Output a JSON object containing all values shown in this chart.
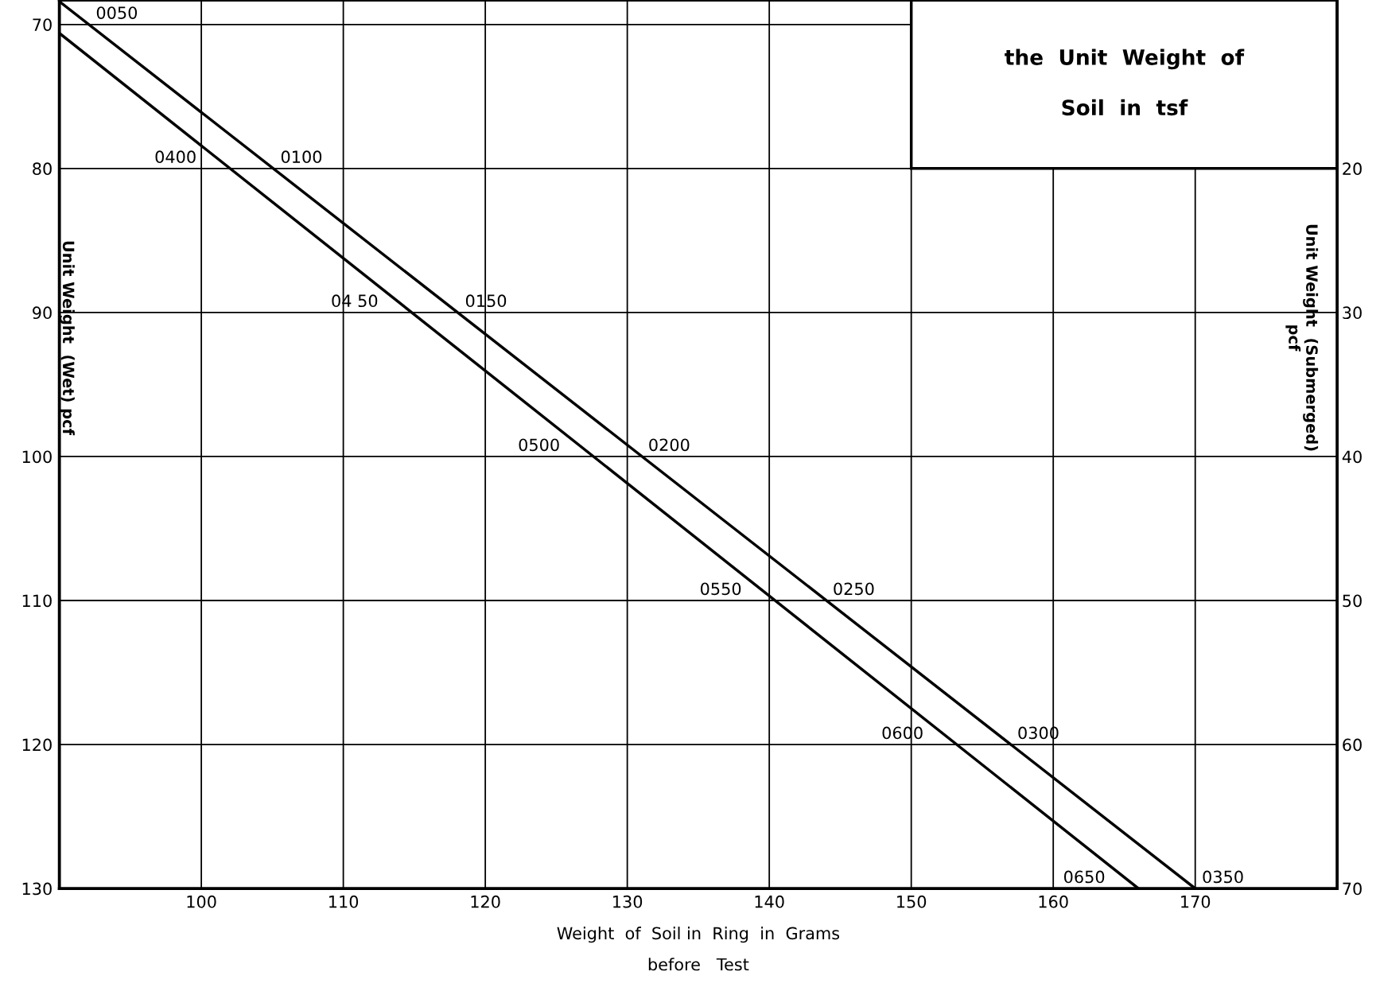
{
  "chart_data": {
    "type": "line",
    "xlabel": "Weight  of  Soil in  Ring  in  Grams\nbefore   Test",
    "ylabel": "Unit Weight  (Wet) pcf",
    "y2label": "Unit Weight  (Submerged)\npcf",
    "series": [
      {
        "color": "#000000",
        "x": [
          90,
          170
        ],
        "values": [
          68.4,
          130
        ]
      },
      {
        "color": "#000000",
        "x": [
          90,
          166
        ],
        "values": [
          70.6,
          130
        ]
      }
    ],
    "xlim": [
      90,
      180
    ],
    "xticks": [
      100,
      110,
      120,
      130,
      140,
      150,
      160,
      170
    ],
    "ylim": [
      130,
      68.3
    ],
    "yticks": [
      70,
      80,
      90,
      100,
      110,
      120,
      130
    ],
    "y2lim": [
      70,
      8.3
    ],
    "y2ticks": [
      20,
      30,
      40,
      50,
      60,
      70
    ],
    "grid": true,
    "marker": "none",
    "line_style": "solid",
    "annotations": [
      "the  Unit  Weight  of\n\nSoil  in  tsf",
      {
        "text": "0050",
        "x": 92.1,
        "y": 70
      },
      {
        "text": "0400",
        "x": 102,
        "y": 80
      },
      {
        "text": "0100",
        "x": 105.1,
        "y": 80
      },
      {
        "text": "04 50",
        "x": 114.8,
        "y": 90
      },
      {
        "text": "0150",
        "x": 118.1,
        "y": 90
      },
      {
        "text": "0500",
        "x": 127.6,
        "y": 100
      },
      {
        "text": "0200",
        "x": 131,
        "y": 100
      },
      {
        "text": "0550",
        "x": 140.4,
        "y": 110
      },
      {
        "text": "0250",
        "x": 144,
        "y": 110
      },
      {
        "text": "0600",
        "x": 153.2,
        "y": 120
      },
      {
        "text": "0300",
        "x": 157,
        "y": 120
      },
      {
        "text": "0650",
        "x": 166,
        "y": 130
      },
      {
        "text": "0350",
        "x": 170,
        "y": 130
      }
    ]
  }
}
